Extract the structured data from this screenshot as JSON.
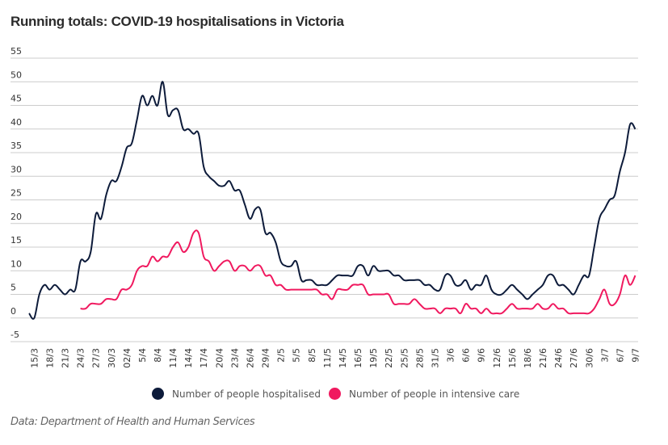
{
  "chart_data": {
    "type": "line",
    "title": "Running totals: COVID-19 hospitalisations in Victoria",
    "xlabel": "",
    "ylabel": "",
    "ylim": [
      -5,
      55
    ],
    "yticks": [
      55,
      50,
      45,
      40,
      35,
      30,
      25,
      20,
      15,
      10,
      5,
      0,
      -5
    ],
    "grid": true,
    "legend_position": "bottom-center",
    "x_tick_labels": [
      "15/3",
      "18/3",
      "21/3",
      "24/3",
      "27/3",
      "30/3",
      "02/4",
      "5/4",
      "8/4",
      "11/4",
      "14/4",
      "17/4",
      "20/4",
      "23/4",
      "26/4",
      "29/4",
      "2/5",
      "5/5",
      "8/5",
      "11/5",
      "14/5",
      "16/5",
      "19/5",
      "22/5",
      "25/5",
      "28/5",
      "31/5",
      "3/6",
      "6/6",
      "9/6",
      "12/6",
      "15/6",
      "18/6",
      "21/6",
      "24/6",
      "27/6",
      "30/6",
      "3/7",
      "6/7",
      "9/7"
    ],
    "x_tick_start_index": 1,
    "x_tick_step": 3,
    "series": [
      {
        "name": "Number of people hospitalised",
        "color": "#0d1b3a",
        "values": [
          1,
          0,
          5,
          7,
          6,
          7,
          6,
          5,
          6,
          6,
          12,
          12,
          14,
          22,
          21,
          26,
          29,
          29,
          32,
          36,
          37,
          42,
          47,
          45,
          47,
          45,
          50,
          43,
          44,
          44,
          40,
          40,
          39,
          39,
          32,
          30,
          29,
          28,
          28,
          29,
          27,
          27,
          24,
          21,
          23,
          23,
          18,
          18,
          16,
          12,
          11,
          11,
          12,
          8,
          8,
          8,
          7,
          7,
          7,
          8,
          9,
          9,
          9,
          9,
          11,
          11,
          9,
          11,
          10,
          10,
          10,
          9,
          9,
          8,
          8,
          8,
          8,
          7,
          7,
          6,
          6,
          9,
          9,
          7,
          7,
          8,
          6,
          7,
          7,
          9,
          6,
          5,
          5,
          6,
          7,
          6,
          5,
          4,
          5,
          6,
          7,
          9,
          9,
          7,
          7,
          6,
          5,
          7,
          9,
          9,
          15,
          21,
          23,
          25,
          26,
          31,
          35,
          41,
          40
        ]
      },
      {
        "name": "Number of people in intensive care",
        "color": "#f0195f",
        "values": [
          null,
          null,
          null,
          null,
          null,
          null,
          null,
          null,
          null,
          null,
          2,
          2,
          3,
          3,
          3,
          4,
          4,
          4,
          6,
          6,
          7,
          10,
          11,
          11,
          13,
          12,
          13,
          13,
          15,
          16,
          14,
          15,
          18,
          18,
          13,
          12,
          10,
          11,
          12,
          12,
          10,
          11,
          11,
          10,
          11,
          11,
          9,
          9,
          7,
          7,
          6,
          6,
          6,
          6,
          6,
          6,
          6,
          5,
          5,
          4,
          6,
          6,
          6,
          7,
          7,
          7,
          5,
          5,
          5,
          5,
          5,
          3,
          3,
          3,
          3,
          4,
          3,
          2,
          2,
          2,
          1,
          2,
          2,
          2,
          1,
          3,
          2,
          2,
          1,
          2,
          1,
          1,
          1,
          2,
          3,
          2,
          2,
          2,
          2,
          3,
          2,
          2,
          3,
          2,
          2,
          1,
          1,
          1,
          1,
          1,
          2,
          4,
          6,
          3,
          3,
          5,
          9,
          7,
          9
        ]
      }
    ]
  },
  "legend": {
    "items": [
      {
        "label": "Number of people hospitalised",
        "color": "#0d1b3a"
      },
      {
        "label": "Number of people in intensive care",
        "color": "#f0195f"
      }
    ]
  },
  "source": "Data: Department of Health and Human Services"
}
